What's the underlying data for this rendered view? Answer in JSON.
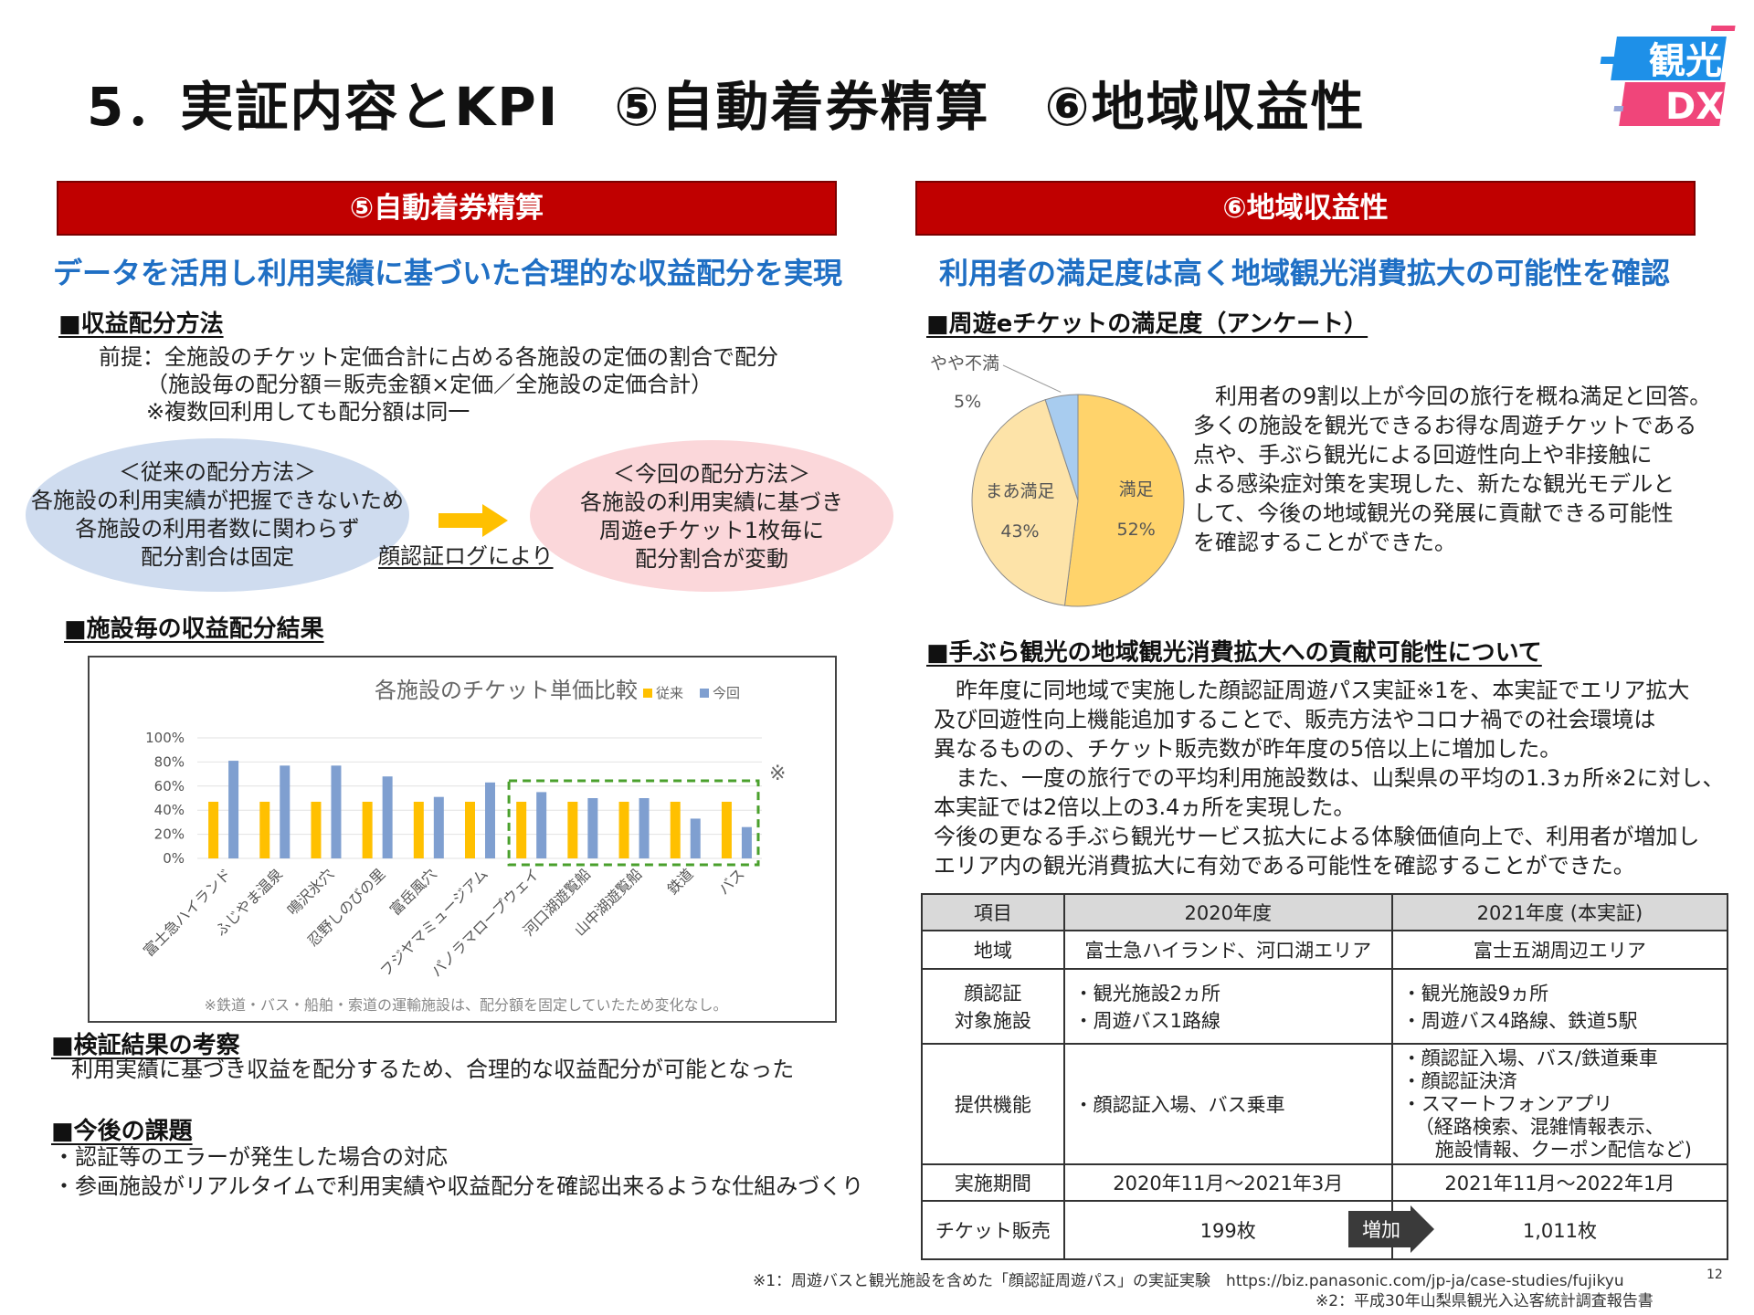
{
  "title": "5．実証内容とKPI　⑤自動着券精算　⑥地域収益性",
  "logo": {
    "line1": "観光",
    "line2": "DX"
  },
  "left": {
    "bar": "⑤自動着券精算",
    "subhead": "データを活用し利用実績に基づいた合理的な収益配分を実現",
    "method_heading": "■収益配分方法",
    "method_lines": [
      "前提：全施設のチケット定価合計に占める各施設の定価の割合で配分",
      "（施設毎の配分額＝販売金額×定価／全施設の定価合計）",
      "※複数回利用しても配分額は同一"
    ],
    "old": {
      "title": "＜従来の配分方法＞",
      "l1": "各施設の利用実績が把握できないため",
      "l2": "各施設の利用者数に関わらず",
      "l3": "配分割合は固定"
    },
    "via": "顔認証ログにより",
    "new": {
      "title": "＜今回の配分方法＞",
      "l1": "各施設の利用実績に基づき",
      "l2": "周遊eチケット1枚毎に",
      "l3": "配分割合が変動"
    },
    "result_heading": "■施設毎の収益配分結果",
    "chart_note": "※鉄道・バス・船舶・索道の運輸施設は、配分額を固定していたため変化なし。",
    "chart_mark": "※",
    "review_heading": "■検証結果の考察",
    "review_text": "利用実績に基づき収益を配分するため、合理的な収益配分が可能となった",
    "issues_heading": "■今後の課題",
    "issues": [
      "・認証等のエラーが発生した場合の対応",
      "・参画施設がリアルタイムで利用実績や収益配分を確認出来るような仕組みづくり"
    ]
  },
  "right": {
    "bar": "⑥地域収益性",
    "subhead": "利用者の満足度は高く地域観光消費拡大の可能性を確認",
    "survey_heading": "■周遊eチケットの満足度（アンケート）",
    "survey_text": [
      "　利用者の9割以上が今回の旅行を概ね満足と回答。",
      "多くの施設を観光できるお得な周遊チケットである",
      "点や、手ぶら観光による回遊性向上や非接触に",
      "よる感染症対策を実現した、新たな観光モデルと",
      "して、今後の地域観光の発展に貢献できる可能性",
      "を確認することができた。"
    ],
    "contrib_heading": "■手ぶら観光の地域観光消費拡大への貢献可能性について",
    "contrib_text": [
      "　昨年度に同地域で実施した顔認証周遊パス実証※1を、本実証でエリア拡大",
      "及び回遊性向上機能追加することで、販売方法やコロナ禍での社会環境は",
      "異なるものの、チケット販売数が昨年度の5倍以上に増加した。",
      "　また、一度の旅行での平均利用施設数は、山梨県の平均の1.3ヵ所※2に対し、",
      "本実証では2倍以上の3.4ヵ所を実現した。",
      "今後の更なる手ぶら観光サービス拡大による体験価値向上で、利用者が増加し",
      "エリア内の観光消費拡大に有効である可能性を確認することができた。"
    ],
    "table": {
      "headers": [
        "項目",
        "2020年度",
        "2021年度 (本実証)"
      ],
      "area": [
        "地域",
        "富士急ハイランド、河口湖エリア",
        "富士五湖周辺エリア"
      ],
      "face_label": [
        "顔認証",
        "対象施設"
      ],
      "face_2020": [
        "・観光施設2ヵ所",
        "・周遊バス1路線"
      ],
      "face_2021": [
        "・観光施設9ヵ所",
        "・周遊バス4路線、鉄道5駅"
      ],
      "func_label": "提供機能",
      "func_2020": "・顔認証入場、バス乗車",
      "func_2021": [
        "・顔認証入場、バス/鉄道乗車",
        "・顔認証決済",
        "・スマートフォンアプリ",
        "（経路検索、混雑情報表示、",
        "施設情報、クーポン配信など)"
      ],
      "period": [
        "実施期間",
        "2020年11月～2021年3月",
        "2021年11月～2022年1月"
      ],
      "tickets": [
        "チケット販売",
        "199枚",
        "1,011枚"
      ],
      "increase": "増加"
    }
  },
  "footnotes": {
    "n1": "※1：周遊バスと観光施設を含めた「顔認証周遊パス」の実証実験　https://biz.panasonic.com/jp-ja/case-studies/fujikyu",
    "n2": "※2：平成30年山梨県観光入込客統計調査報告書",
    "page": "12"
  },
  "chart_data": [
    {
      "type": "bar",
      "title": "各施設のチケット単価比較",
      "categories": [
        "富士急ハイランド",
        "ふじやま温泉",
        "鳴沢氷穴",
        "忍野しのびの里",
        "富岳風穴",
        "フジヤマミュージアム",
        "パノラマロープウェイ",
        "河口湖遊覧船",
        "山中湖遊覧船",
        "鉄道",
        "バス"
      ],
      "series": [
        {
          "name": "従来",
          "color": "#ffc000",
          "values": [
            47,
            47,
            47,
            47,
            47,
            47,
            47,
            47,
            47,
            47,
            47
          ]
        },
        {
          "name": "今回",
          "color": "#7f9fd0",
          "values": [
            81,
            77,
            77,
            68,
            51,
            63,
            55,
            50,
            50,
            33,
            26
          ]
        }
      ],
      "yticks": [
        "0%",
        "20%",
        "40%",
        "60%",
        "80%",
        "100%"
      ],
      "ylim": [
        0,
        100
      ]
    },
    {
      "type": "pie",
      "slices": [
        {
          "label": "満足",
          "value": 52,
          "pct": "52%",
          "color": "#ffd36b"
        },
        {
          "label": "まあ満足",
          "value": 43,
          "pct": "43%",
          "color": "#fde3a8"
        },
        {
          "label": "やや不満",
          "value": 5,
          "pct": "5%",
          "color": "#a8ccef"
        }
      ]
    }
  ]
}
